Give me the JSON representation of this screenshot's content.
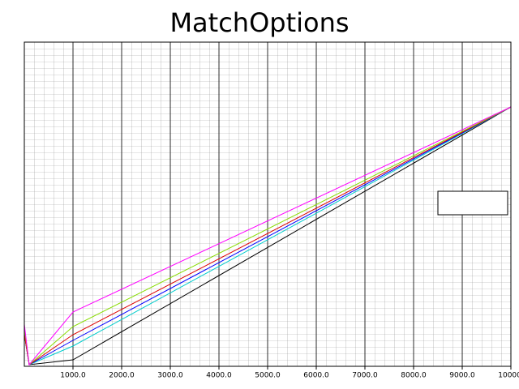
{
  "chart_data": {
    "type": "line",
    "title": "MatchOptions",
    "x": [
      0,
      100,
      1000,
      10000
    ],
    "series": [
      {
        "color": "#000000",
        "values": [
          0.1,
          0.005,
          0.02,
          0.8
        ]
      },
      {
        "color": "#00cccc",
        "values": [
          0.1,
          0.005,
          0.0625,
          0.8
        ]
      },
      {
        "color": "#0000ff",
        "values": [
          0.1,
          0.005,
          0.08,
          0.8
        ]
      },
      {
        "color": "#dd0000",
        "values": [
          0.1,
          0.005,
          0.0975,
          0.8
        ]
      },
      {
        "color": "#88dd00",
        "values": [
          0.12,
          0.005,
          0.1225,
          0.8
        ]
      },
      {
        "color": "#ff00ff",
        "values": [
          0.13,
          0.005,
          0.1675,
          0.8
        ]
      }
    ],
    "xlim": [
      0,
      10000
    ],
    "xticks": [
      {
        "value": 1000,
        "label": "1000.0"
      },
      {
        "value": 2000,
        "label": "2000.0"
      },
      {
        "value": 3000,
        "label": "3000.0"
      },
      {
        "value": 4000,
        "label": "4000.0"
      },
      {
        "value": 5000,
        "label": "5000.0"
      },
      {
        "value": 6000,
        "label": "6000.0"
      },
      {
        "value": 7000,
        "label": "7000.0"
      },
      {
        "value": 8000,
        "label": "8000.0"
      },
      {
        "value": 9000,
        "label": "9000.0"
      },
      {
        "value": 10000,
        "label": "10000."
      }
    ],
    "ylim": [
      0,
      1
    ],
    "grid": true
  }
}
